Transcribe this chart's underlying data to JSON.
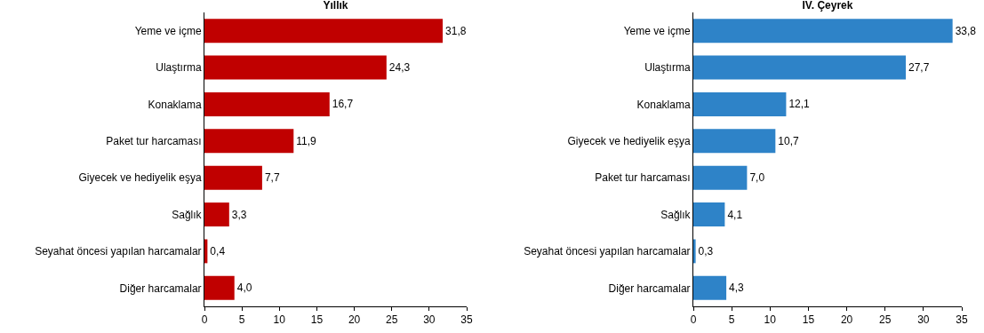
{
  "chart_data": [
    {
      "type": "bar",
      "orientation": "horizontal",
      "title": "Yıllık",
      "categories": [
        "Yeme ve içme",
        "Ulaştırma",
        "Konaklama",
        "Paket tur harcaması",
        "Giyecek ve hediyelik eşya",
        "Sağlık",
        "Seyahat öncesi yapılan harcamalar",
        "Diğer harcamalar"
      ],
      "values": [
        31.8,
        24.3,
        16.7,
        11.9,
        7.7,
        3.3,
        0.4,
        4.0
      ],
      "value_labels": [
        "31,8",
        "24,3",
        "16,7",
        "11,9",
        "7,7",
        "3,3",
        "0,4",
        "4,0"
      ],
      "color": "#c00000",
      "xlim": [
        0,
        35
      ],
      "xticks": [
        0,
        5,
        10,
        15,
        20,
        25,
        30,
        35
      ],
      "grid": false,
      "legend": false
    },
    {
      "type": "bar",
      "orientation": "horizontal",
      "title": "IV. Çeyrek",
      "categories": [
        "Yeme ve içme",
        "Ulaştırma",
        "Konaklama",
        "Giyecek ve hediyelik eşya",
        "Paket tur harcaması",
        "Sağlık",
        "Seyahat öncesi yapılan harcamalar",
        "Diğer harcamalar"
      ],
      "values": [
        33.8,
        27.7,
        12.1,
        10.7,
        7.0,
        4.1,
        0.3,
        4.3
      ],
      "value_labels": [
        "33,8",
        "27,7",
        "12,1",
        "10,7",
        "7,0",
        "4,1",
        "0,3",
        "4,3"
      ],
      "color": "#2e83c8",
      "xlim": [
        0,
        35
      ],
      "xticks": [
        0,
        5,
        10,
        15,
        20,
        25,
        30,
        35
      ],
      "grid": false,
      "legend": false
    }
  ]
}
